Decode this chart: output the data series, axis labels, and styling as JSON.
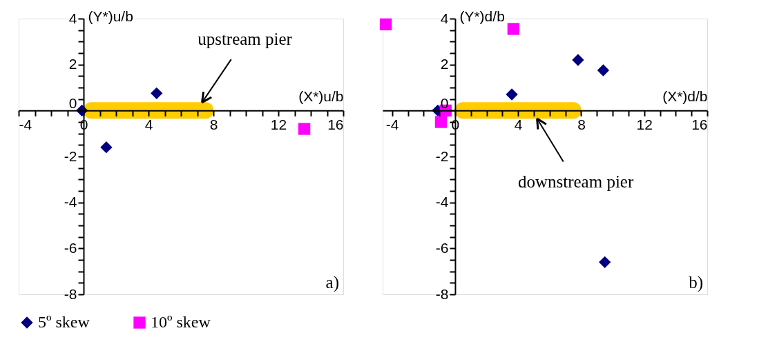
{
  "chart_data": [
    {
      "type": "scatter",
      "xlabel": "(X*)u/b",
      "ylabel": "(Y*)u/b",
      "xlim": [
        -4,
        16
      ],
      "ylim": [
        -8,
        4
      ],
      "xticks": [
        -4,
        {
          "value": -3,
          "label": null
        },
        {
          "value": -2,
          "label": null
        },
        {
          "value": -1,
          "label": null
        },
        0,
        {
          "value": 1,
          "label": null
        },
        {
          "value": 2,
          "label": null
        },
        {
          "value": 3,
          "label": null
        },
        4,
        {
          "value": 5,
          "label": null
        },
        {
          "value": 6,
          "label": null
        },
        {
          "value": 7,
          "label": null
        },
        8,
        {
          "value": 9,
          "label": null
        },
        {
          "value": 10,
          "label": null
        },
        {
          "value": 11,
          "label": null
        },
        12,
        {
          "value": 13,
          "label": null
        },
        {
          "value": 14,
          "label": null
        },
        {
          "value": 15,
          "label": null
        },
        16
      ],
      "yticks": [
        -8,
        {
          "value": -7.5,
          "label": null
        },
        {
          "value": -7,
          "label": null
        },
        {
          "value": -6.5,
          "label": null
        },
        -6,
        {
          "value": -5.5,
          "label": null
        },
        {
          "value": -5,
          "label": null
        },
        {
          "value": -4.5,
          "label": null
        },
        -4,
        {
          "value": -3.5,
          "label": null
        },
        {
          "value": -3,
          "label": null
        },
        {
          "value": -2.5,
          "label": null
        },
        -2,
        {
          "value": -1.5,
          "label": null
        },
        {
          "value": -1,
          "label": null
        },
        {
          "value": -0.5,
          "label": null
        },
        0,
        {
          "value": 0.5,
          "label": null
        },
        {
          "value": 1,
          "label": null
        },
        {
          "value": 1.5,
          "label": null
        },
        2,
        {
          "value": 2.5,
          "label": null
        },
        {
          "value": 3,
          "label": null
        },
        {
          "value": 3.5,
          "label": null
        },
        4
      ],
      "series": [
        {
          "name": "5º skew",
          "color": "#000080",
          "marker": "diamond",
          "x": [
            -0.1,
            4.5,
            1.4
          ],
          "values": [
            0,
            0.75,
            -1.6
          ]
        },
        {
          "name": "10º skew",
          "color": "#ff00ff",
          "marker": "square",
          "x": [
            13.6
          ],
          "values": [
            -0.8
          ]
        }
      ],
      "bands": [
        {
          "axis": "x",
          "from": 0,
          "to": 8,
          "color": "#ffcc00"
        }
      ],
      "annotations": [
        {
          "text": "upstream pier",
          "x": 7.3,
          "y": 0.35
        },
        "a)"
      ],
      "grid": false,
      "legend": "bottom"
    },
    {
      "type": "scatter",
      "xlabel": "(X*)d/b",
      "ylabel": "(Y*)d/b",
      "xlim": [
        -4.6,
        16
      ],
      "ylim": [
        -8,
        4
      ],
      "xticks": [
        -4,
        {
          "value": -3,
          "label": null
        },
        {
          "value": -2,
          "label": null
        },
        {
          "value": -1,
          "label": null
        },
        0,
        {
          "value": 1,
          "label": null
        },
        {
          "value": 2,
          "label": null
        },
        {
          "value": 3,
          "label": null
        },
        4,
        {
          "value": 5,
          "label": null
        },
        {
          "value": 6,
          "label": null
        },
        {
          "value": 7,
          "label": null
        },
        8,
        {
          "value": 9,
          "label": null
        },
        {
          "value": 10,
          "label": null
        },
        {
          "value": 11,
          "label": null
        },
        12,
        {
          "value": 13,
          "label": null
        },
        {
          "value": 14,
          "label": null
        },
        {
          "value": 15,
          "label": null
        },
        16
      ],
      "yticks": [
        -8,
        {
          "value": -7.5,
          "label": null
        },
        {
          "value": -7,
          "label": null
        },
        {
          "value": -6.5,
          "label": null
        },
        -6,
        {
          "value": -5.5,
          "label": null
        },
        {
          "value": -5,
          "label": null
        },
        {
          "value": -4.5,
          "label": null
        },
        -4,
        {
          "value": -3.5,
          "label": null
        },
        {
          "value": -3,
          "label": null
        },
        {
          "value": -2.5,
          "label": null
        },
        -2,
        {
          "value": -1.5,
          "label": null
        },
        {
          "value": -1,
          "label": null
        },
        {
          "value": -0.5,
          "label": null
        },
        0,
        {
          "value": 0.5,
          "label": null
        },
        {
          "value": 1,
          "label": null
        },
        {
          "value": 1.5,
          "label": null
        },
        2,
        {
          "value": 2.5,
          "label": null
        },
        {
          "value": 3,
          "label": null
        },
        {
          "value": 3.5,
          "label": null
        },
        4
      ],
      "series": [
        {
          "name": "5º skew",
          "color": "#000080",
          "marker": "diamond",
          "x": [
            -1.1,
            3.6,
            7.8,
            9.4,
            9.5
          ],
          "values": [
            0,
            0.7,
            2.2,
            1.75,
            -6.6
          ]
        },
        {
          "name": "10º skew",
          "color": "#ff00ff",
          "marker": "square",
          "x": [
            -4.4,
            3.7,
            -0.6,
            -0.9
          ],
          "values": [
            3.75,
            3.55,
            0,
            -0.5
          ]
        }
      ],
      "bands": [
        {
          "axis": "x",
          "from": 0,
          "to": 8,
          "color": "#ffcc00"
        }
      ],
      "annotations": [
        {
          "text": "downstream pier",
          "x": 5.2,
          "y": -0.35
        },
        "b)"
      ],
      "grid": false,
      "legend": "bottom"
    }
  ]
}
